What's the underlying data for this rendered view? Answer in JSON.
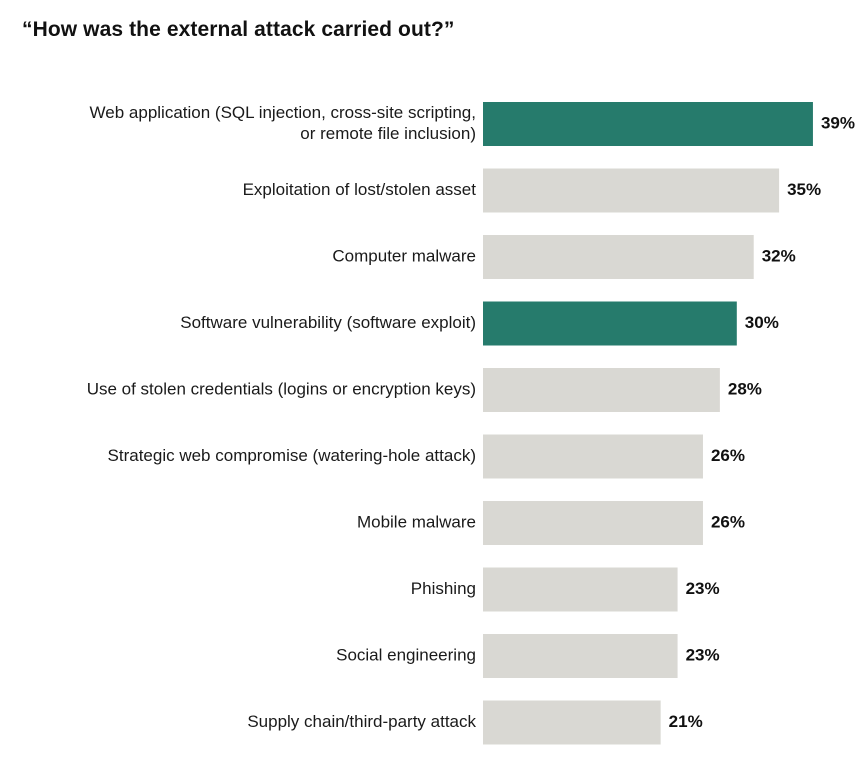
{
  "chart_data": {
    "type": "bar",
    "orientation": "horizontal",
    "title": "“How was the external attack carried out?”",
    "xlabel": "",
    "ylabel": "",
    "xlim": [
      0,
      39
    ],
    "value_suffix": "%",
    "categories": [
      [
        "Web application (SQL injection, cross-site scripting,",
        "or remote file inclusion)"
      ],
      [
        "Exploitation of lost/stolen asset"
      ],
      [
        "Computer malware"
      ],
      [
        "Software vulnerability (software exploit)"
      ],
      [
        "Use of stolen credentials (logins or encryption keys)"
      ],
      [
        "Strategic web compromise (watering-hole attack)"
      ],
      [
        "Mobile malware"
      ],
      [
        "Phishing"
      ],
      [
        "Social engineering"
      ],
      [
        "Supply chain/third-party attack"
      ]
    ],
    "values": [
      39,
      35,
      32,
      30,
      28,
      26,
      26,
      23,
      23,
      21
    ],
    "highlighted": [
      true,
      false,
      false,
      true,
      false,
      false,
      false,
      false,
      false,
      false
    ],
    "colors": {
      "highlight": "#267b6c",
      "default": "#d9d8d3"
    }
  }
}
